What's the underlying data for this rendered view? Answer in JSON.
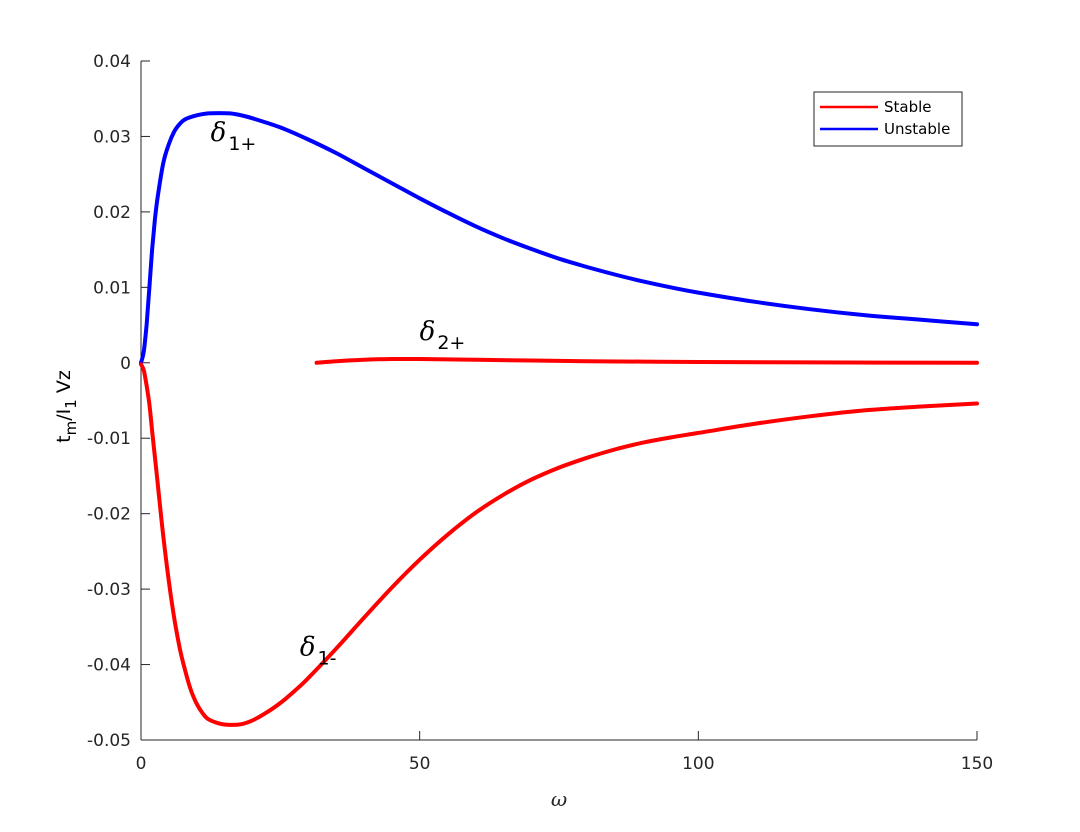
{
  "chart_data": {
    "type": "line",
    "xlabel": "ω",
    "ylabel": {
      "t": "t",
      "t_sub": "m",
      "slash": "/I",
      "i_sub": "1",
      "rest": " Vz"
    },
    "xlim": [
      0,
      150
    ],
    "ylim": [
      -0.05,
      0.04
    ],
    "xticks": [
      0,
      50,
      100,
      150
    ],
    "xtick_labels": [
      "0",
      "50",
      "100",
      "150"
    ],
    "yticks": [
      -0.05,
      -0.04,
      -0.03,
      -0.02,
      -0.01,
      0,
      0.01,
      0.02,
      0.03,
      0.04
    ],
    "ytick_labels": [
      "-0.05",
      "-0.04",
      "-0.03",
      "-0.02",
      "-0.01",
      "0",
      "0.01",
      "0.02",
      "0.03",
      "0.04"
    ],
    "grid": false,
    "legend_position": "top-right",
    "legend": [
      {
        "label": "Stable",
        "color": "#ff0000"
      },
      {
        "label": "Unstable",
        "color": "#0000ff"
      }
    ],
    "series": [
      {
        "id": "delta1plus",
        "stability": "Unstable",
        "color": "#0000ff",
        "points": [
          [
            0,
            0
          ],
          [
            0.5,
            0.0015
          ],
          [
            1,
            0.005
          ],
          [
            1.5,
            0.01
          ],
          [
            2,
            0.015
          ],
          [
            2.5,
            0.019
          ],
          [
            3,
            0.022
          ],
          [
            4,
            0.0265
          ],
          [
            5,
            0.029
          ],
          [
            6,
            0.0307
          ],
          [
            7,
            0.0317
          ],
          [
            8,
            0.0323
          ],
          [
            10,
            0.0328
          ],
          [
            12,
            0.03305
          ],
          [
            14,
            0.0331
          ],
          [
            16,
            0.03305
          ],
          [
            18,
            0.0328
          ],
          [
            20,
            0.0324
          ],
          [
            25,
            0.0312
          ],
          [
            30,
            0.0296
          ],
          [
            35,
            0.0278
          ],
          [
            40,
            0.0258
          ],
          [
            45,
            0.0238
          ],
          [
            50,
            0.0218
          ],
          [
            55,
            0.0199
          ],
          [
            60,
            0.0181
          ],
          [
            65,
            0.0165
          ],
          [
            70,
            0.0151
          ],
          [
            75,
            0.0138
          ],
          [
            80,
            0.0127
          ],
          [
            85,
            0.0117
          ],
          [
            90,
            0.0108
          ],
          [
            95,
            0.01
          ],
          [
            100,
            0.0093
          ],
          [
            110,
            0.0081
          ],
          [
            120,
            0.0071
          ],
          [
            130,
            0.0063
          ],
          [
            140,
            0.0057
          ],
          [
            150,
            0.0051
          ]
        ]
      },
      {
        "id": "delta1minus",
        "stability": "Stable",
        "color": "#ff0000",
        "points": [
          [
            0,
            -0.0002
          ],
          [
            0.5,
            -0.001
          ],
          [
            1,
            -0.003
          ],
          [
            1.5,
            -0.0055
          ],
          [
            2,
            -0.009
          ],
          [
            2.5,
            -0.0125
          ],
          [
            3,
            -0.016
          ],
          [
            4,
            -0.023
          ],
          [
            5,
            -0.029
          ],
          [
            6,
            -0.034
          ],
          [
            7,
            -0.038
          ],
          [
            8,
            -0.041
          ],
          [
            9,
            -0.0435
          ],
          [
            10,
            -0.0452
          ],
          [
            11,
            -0.0464
          ],
          [
            12,
            -0.0472
          ],
          [
            14,
            -0.0478
          ],
          [
            16,
            -0.048
          ],
          [
            18,
            -0.0479
          ],
          [
            20,
            -0.0474
          ],
          [
            22,
            -0.0466
          ],
          [
            25,
            -0.0451
          ],
          [
            28,
            -0.0432
          ],
          [
            30,
            -0.0418
          ],
          [
            35,
            -0.0379
          ],
          [
            40,
            -0.0338
          ],
          [
            45,
            -0.0298
          ],
          [
            50,
            -0.0261
          ],
          [
            55,
            -0.0228
          ],
          [
            60,
            -0.0199
          ],
          [
            65,
            -0.0175
          ],
          [
            70,
            -0.0155
          ],
          [
            75,
            -0.0139
          ],
          [
            80,
            -0.0126
          ],
          [
            85,
            -0.0115
          ],
          [
            90,
            -0.0106
          ],
          [
            95,
            -0.0099
          ],
          [
            100,
            -0.0093
          ],
          [
            110,
            -0.0081
          ],
          [
            120,
            -0.0071
          ],
          [
            130,
            -0.0063
          ],
          [
            140,
            -0.0058
          ],
          [
            150,
            -0.0054
          ]
        ]
      },
      {
        "id": "delta2plus",
        "stability": "Stable",
        "color": "#ff0000",
        "points": [
          [
            31.5,
            0
          ],
          [
            35,
            0.0002
          ],
          [
            40,
            0.0004
          ],
          [
            45,
            0.0005
          ],
          [
            50,
            0.0005
          ],
          [
            60,
            0.0004
          ],
          [
            70,
            0.0003
          ],
          [
            80,
            0.0002
          ],
          [
            90,
            0.00015
          ],
          [
            100,
            0.0001
          ],
          [
            120,
            5e-05
          ],
          [
            150,
            0
          ]
        ]
      }
    ],
    "annotations": [
      {
        "id": "delta1plus",
        "symbol": "δ",
        "sub": "1+",
        "x": 12.5,
        "y": 0.0294
      },
      {
        "id": "delta2plus",
        "symbol": "δ",
        "sub": "2+",
        "x": 50,
        "y": 0.003
      },
      {
        "id": "delta1minus",
        "symbol": "δ",
        "sub": "1-",
        "x": 28.5,
        "y": -0.0388
      }
    ]
  }
}
